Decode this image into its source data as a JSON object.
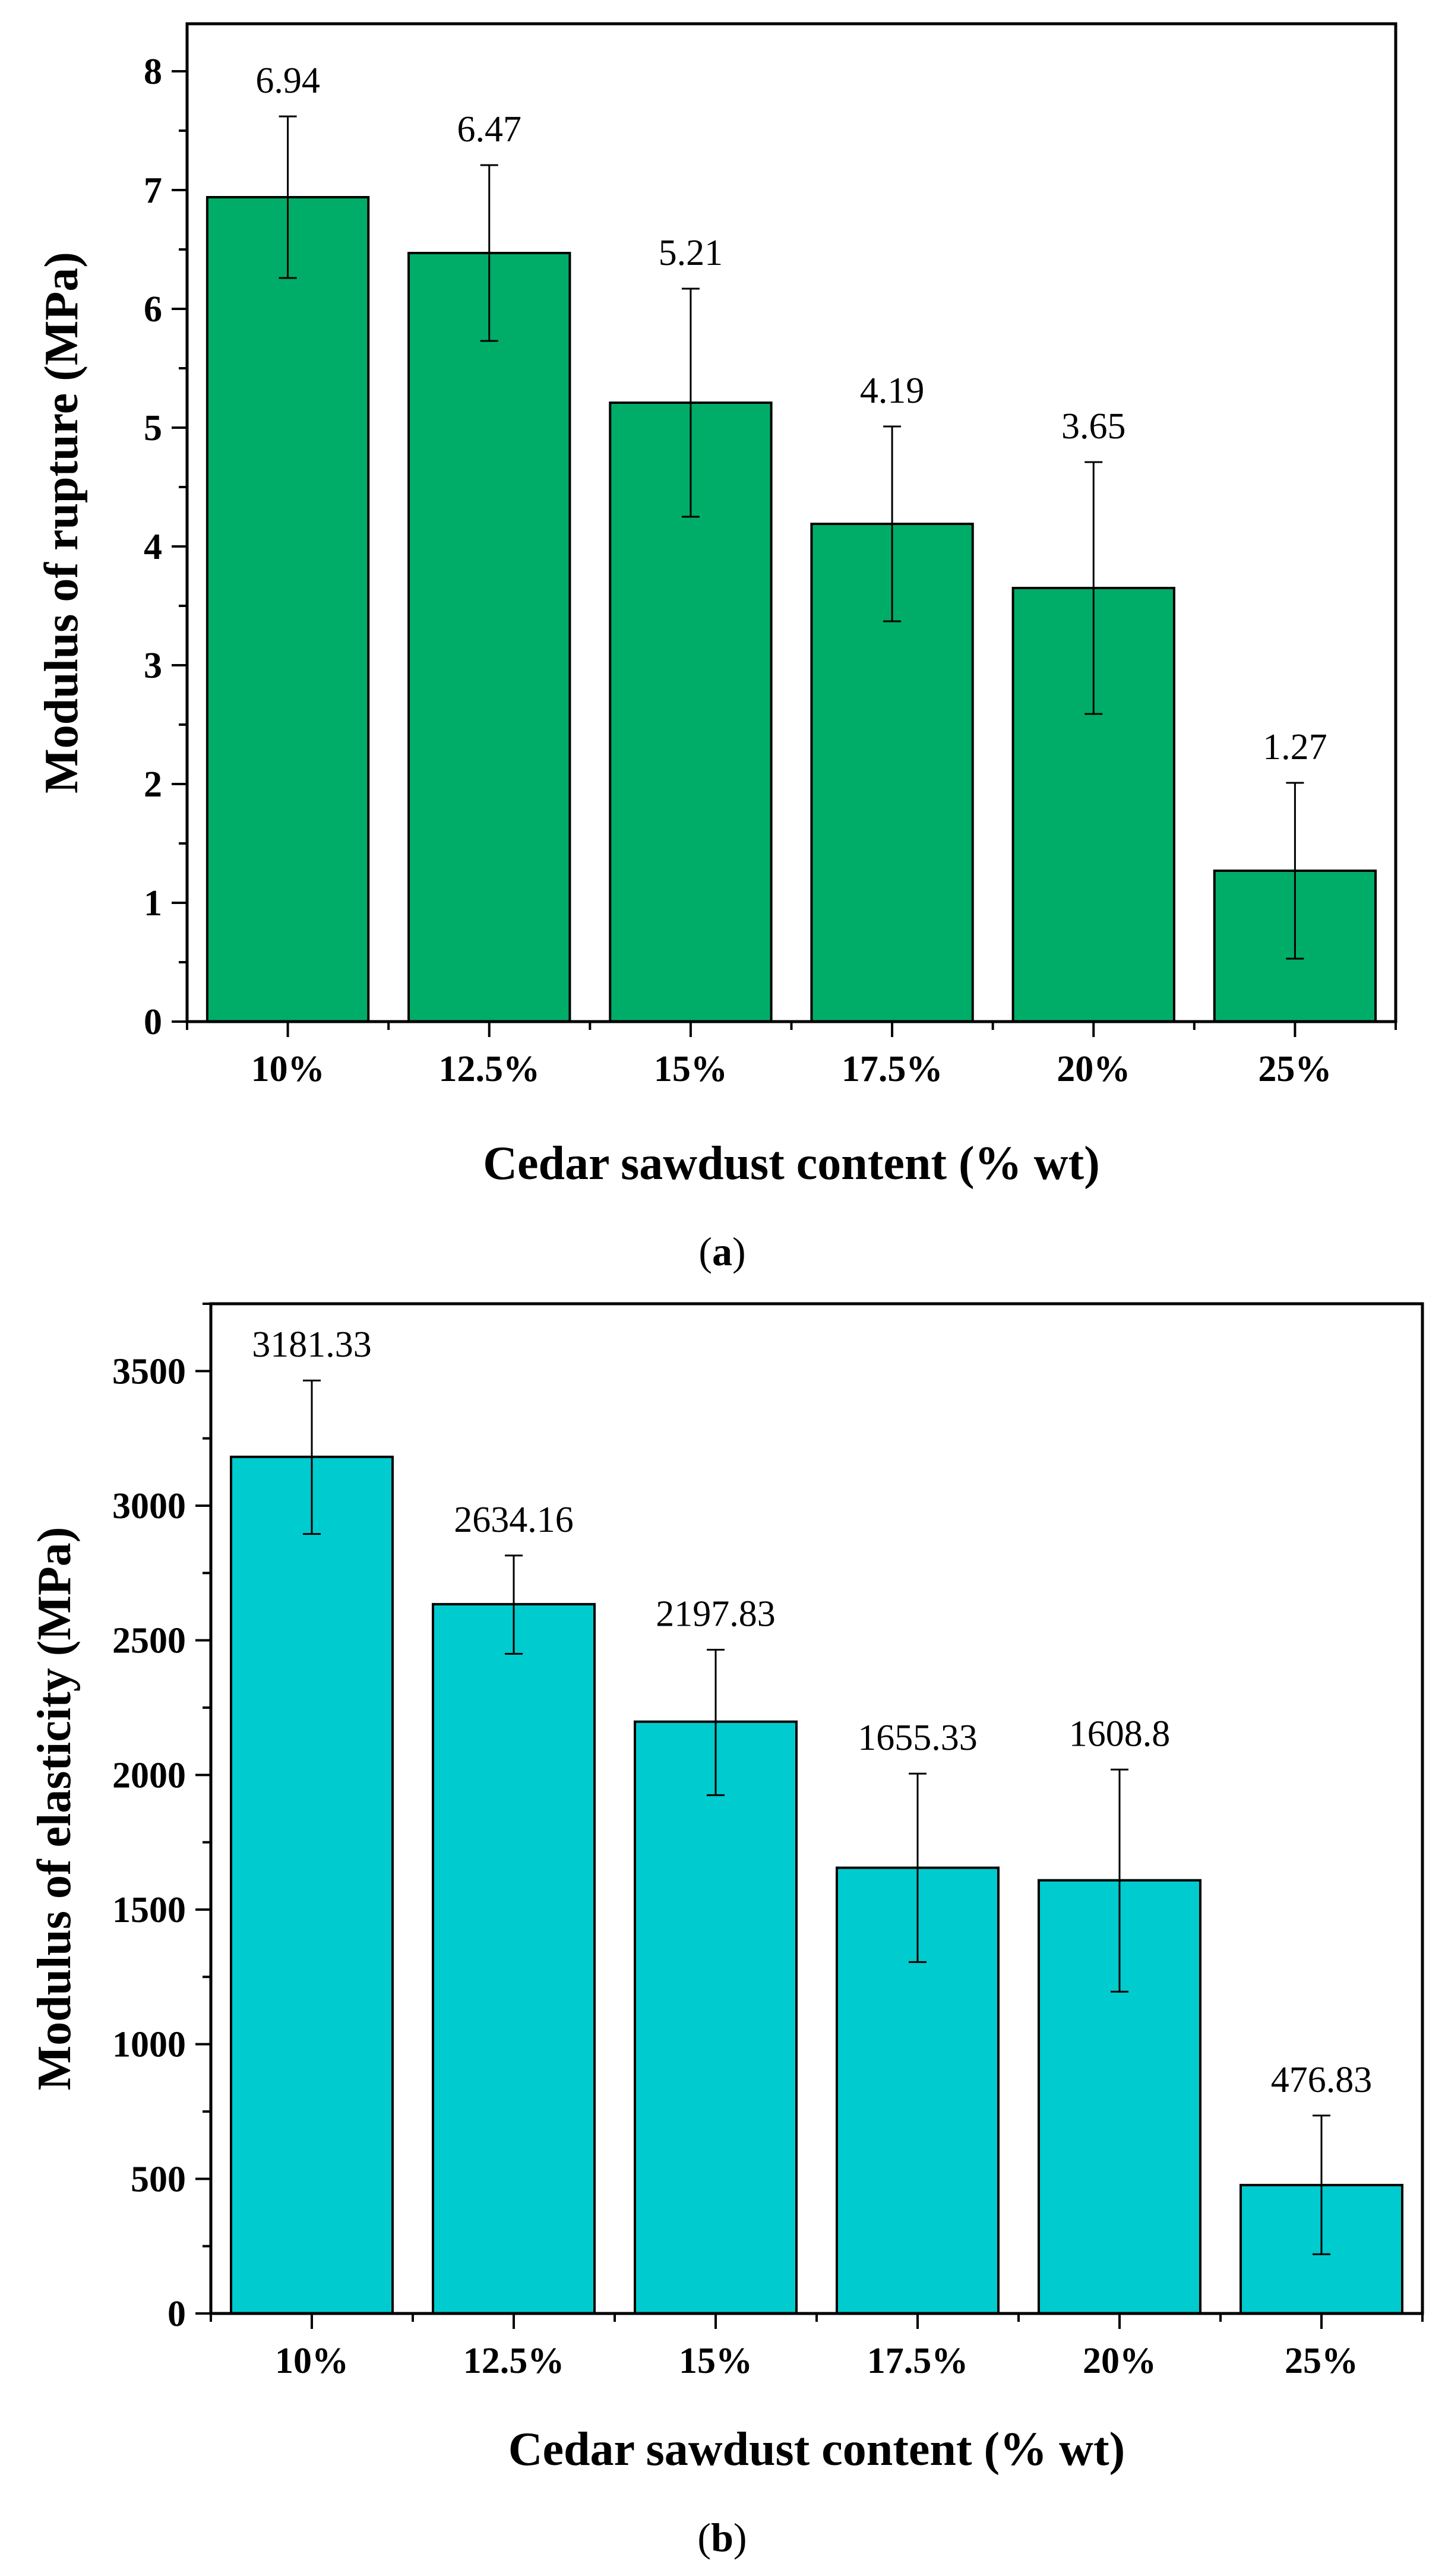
{
  "chart_data": [
    {
      "type": "bar",
      "panel_label": "a",
      "title": "",
      "xlabel": "Cedar sawdust content (% wt)",
      "ylabel": "Modulus of rupture (MPa)",
      "categories": [
        "10%",
        "12.5%",
        "15%",
        "17.5%",
        "20%",
        "25%"
      ],
      "values": [
        6.94,
        6.47,
        5.21,
        4.19,
        3.65,
        1.27
      ],
      "value_labels": [
        "6.94",
        "6.47",
        "5.21",
        "4.19",
        "3.65",
        "1.27"
      ],
      "error_low": [
        6.26,
        5.73,
        4.25,
        3.37,
        2.59,
        0.53
      ],
      "error_high": [
        7.62,
        7.21,
        6.17,
        5.01,
        4.71,
        2.01
      ],
      "ylim": [
        0,
        8.4
      ],
      "major_ticks": [
        0,
        1,
        2,
        3,
        4,
        5,
        6,
        7,
        8
      ],
      "minor_step": 0.5,
      "bar_color": "#00ad68",
      "grid": false
    },
    {
      "type": "bar",
      "panel_label": "b",
      "title": "",
      "xlabel": "Cedar sawdust content (% wt)",
      "ylabel": "Modulus of elasticity (MPa)",
      "categories": [
        "10%",
        "12.5%",
        "15%",
        "17.5%",
        "20%",
        "25%"
      ],
      "values": [
        3181.33,
        2634.16,
        2197.83,
        1655.33,
        1608.8,
        476.83
      ],
      "value_labels": [
        "3181.33",
        "2634.16",
        "2197.83",
        "1655.33",
        "1608.8",
        "476.83"
      ],
      "error_low": [
        2895,
        2450,
        1925,
        1305,
        1195,
        220
      ],
      "error_high": [
        3465,
        2815,
        2465,
        2005,
        2020,
        735
      ],
      "ylim": [
        0,
        3750
      ],
      "major_ticks": [
        0,
        500,
        1000,
        1500,
        2000,
        2500,
        3000,
        3500
      ],
      "minor_step": 250,
      "bar_color": "#00cbce",
      "grid": false
    }
  ]
}
